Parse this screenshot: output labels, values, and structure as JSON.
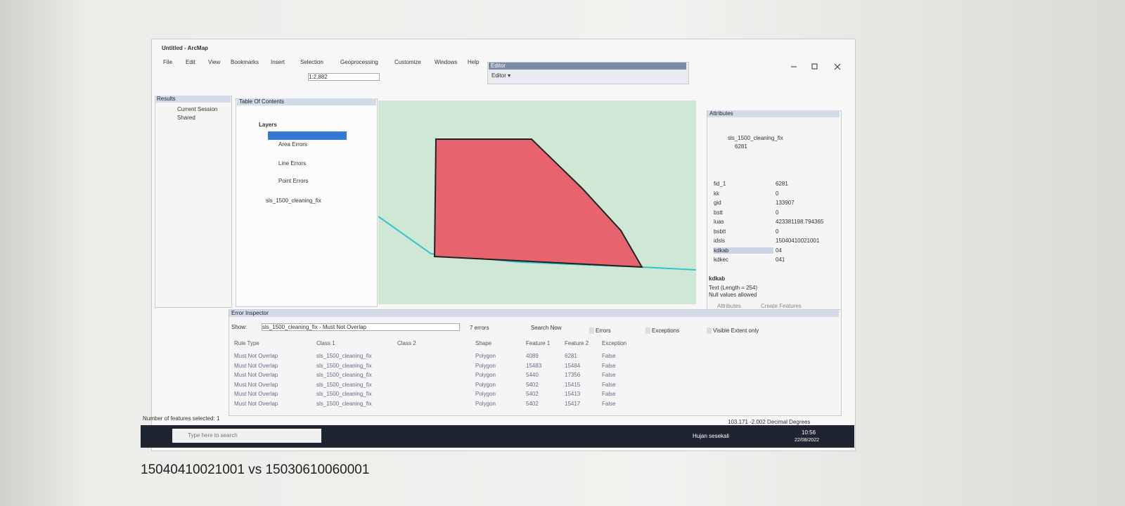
{
  "window": {
    "title": "Untitled - ArcMap",
    "menu": [
      "File",
      "Edit",
      "View",
      "Bookmarks",
      "Insert",
      "Selection",
      "Geoprocessing",
      "Customize",
      "Windows",
      "Help"
    ],
    "scale": "1:2,882",
    "editor_toolbar": {
      "title": "Editor",
      "button": "Editor ▾"
    }
  },
  "results": {
    "title": "Results",
    "items": [
      "Current Session",
      "Shared"
    ]
  },
  "toc": {
    "title": "Table Of Contents",
    "root": "Layers",
    "items": [
      "Area Errors",
      "Line Errors",
      "Point Errors",
      "sls_1500_cleaning_fix"
    ]
  },
  "attributes": {
    "title": "Attributes",
    "layer": "sls_1500_cleaning_fix",
    "feature": "6281",
    "rows": [
      [
        "fid_1",
        "6281"
      ],
      [
        "kk",
        "0"
      ],
      [
        "gid",
        "133907"
      ],
      [
        "bstt",
        "0"
      ],
      [
        "luas",
        "423381198.794365"
      ],
      [
        "bsbtt",
        "0"
      ],
      [
        "idsls",
        "15040410021001"
      ],
      [
        "kdkab",
        "04"
      ],
      [
        "kdkec",
        "041"
      ]
    ],
    "field": "kdkab",
    "field_info": [
      "Text (Length = 254)",
      "Null values allowed"
    ],
    "tabs": [
      "Attributes",
      "Create Features"
    ]
  },
  "error_inspector": {
    "title": "Error Inspector",
    "show_label": "Show:",
    "show_value": "sls_1500_cleaning_fix - Must Not Overlap",
    "errors": "7 errors",
    "search": "Search Now",
    "checks": [
      "Errors",
      "Exceptions",
      "Visible Extent only"
    ],
    "columns": [
      "Rule Type",
      "Class 1",
      "Class 2",
      "Shape",
      "Feature 1",
      "Feature 2",
      "Exception"
    ],
    "rows": [
      {
        "rule": "Must Not Overlap",
        "class1": "sls_1500_cleaning_fix",
        "shape": "Polygon",
        "f1": "4089",
        "f2": "6281",
        "exc": "False"
      },
      {
        "rule": "Must Not Overlap",
        "class1": "sls_1500_cleaning_fix",
        "shape": "Polygon",
        "f1": "15483",
        "f2": "15484",
        "exc": "False"
      },
      {
        "rule": "Must Not Overlap",
        "class1": "sls_1500_cleaning_fix",
        "shape": "Polygon",
        "f1": "5440",
        "f2": "17356",
        "exc": "False"
      },
      {
        "rule": "Must Not Overlap",
        "class1": "sls_1500_cleaning_fix",
        "shape": "Polygon",
        "f1": "5402",
        "f2": "15415",
        "exc": "False"
      },
      {
        "rule": "Must Not Overlap",
        "class1": "sls_1500_cleaning_fix",
        "shape": "Polygon",
        "f1": "5402",
        "f2": "15413",
        "exc": "False"
      },
      {
        "rule": "Must Not Overlap",
        "class1": "sls_1500_cleaning_fix",
        "shape": "Polygon",
        "f1": "5402",
        "f2": "15417",
        "exc": "False"
      }
    ]
  },
  "status": {
    "selected": "Number of features selected: 1",
    "coords": "103.171  -2.002 Decimal Degrees"
  },
  "taskbar": {
    "search": "Type here to search",
    "weather": "Hujan sesekali",
    "time": "10:56",
    "date": "22/08/2022"
  },
  "caption": "15040410021001 vs 15030610060001"
}
